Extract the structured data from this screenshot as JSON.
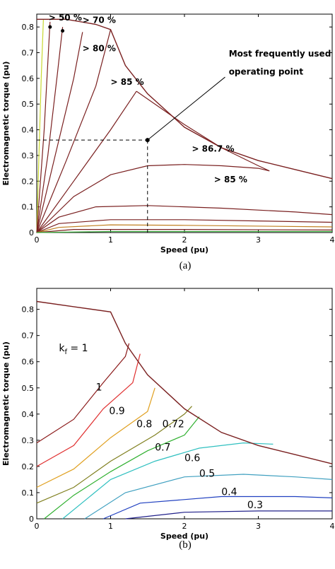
{
  "chart_data": [
    {
      "type": "line",
      "panel": "a",
      "caption": "(a)",
      "xlabel": "Speed (pu)",
      "ylabel": "Electromagnetic torque (pu)",
      "xlim": [
        0,
        4
      ],
      "ylim": [
        0,
        0.85
      ],
      "xticks": [
        "0",
        "1",
        "2",
        "3",
        "4"
      ],
      "yticks": [
        "0",
        "0.1",
        "0.2",
        "0.3",
        "0.4",
        "0.5",
        "0.6",
        "0.7",
        "0.8"
      ],
      "envelope": [
        [
          0,
          0.83
        ],
        [
          0.4,
          0.83
        ],
        [
          0.8,
          0.81
        ],
        [
          1.0,
          0.79
        ],
        [
          1.2,
          0.65
        ],
        [
          1.5,
          0.54
        ],
        [
          2.0,
          0.41
        ],
        [
          2.5,
          0.33
        ],
        [
          3.0,
          0.28
        ],
        [
          3.5,
          0.245
        ],
        [
          4.0,
          0.21
        ]
      ],
      "series": [
        {
          "color": "#c8d830",
          "points": [
            [
              0,
              0
            ],
            [
              0.03,
              0.3
            ],
            [
              0.06,
              0.6
            ],
            [
              0.09,
              0.83
            ]
          ]
        },
        {
          "color": "#7a2020",
          "points": [
            [
              0,
              0
            ],
            [
              0.1,
              0.4
            ],
            [
              0.18,
              0.82
            ]
          ]
        },
        {
          "color": "#7a2020",
          "points": [
            [
              0,
              0
            ],
            [
              0.15,
              0.3
            ],
            [
              0.28,
              0.62
            ],
            [
              0.35,
              0.8
            ]
          ]
        },
        {
          "color": "#7a2020",
          "points": [
            [
              0,
              0
            ],
            [
              0.25,
              0.3
            ],
            [
              0.5,
              0.6
            ],
            [
              0.62,
              0.78
            ]
          ]
        },
        {
          "color": "#7a2020",
          "points": [
            [
              0,
              0
            ],
            [
              0.4,
              0.28
            ],
            [
              0.8,
              0.57
            ],
            [
              1.0,
              0.79
            ]
          ]
        },
        {
          "color": "#7a2020",
          "points": [
            [
              0,
              0
            ],
            [
              0.5,
              0.2
            ],
            [
              1.0,
              0.4
            ],
            [
              1.35,
              0.55
            ]
          ]
        },
        {
          "color": "#7a2020",
          "points": [
            [
              0,
              0
            ],
            [
              0.5,
              0.14
            ],
            [
              1.0,
              0.225
            ],
            [
              1.5,
              0.26
            ],
            [
              2.0,
              0.265
            ],
            [
              2.5,
              0.26
            ],
            [
              3.0,
              0.25
            ],
            [
              3.15,
              0.24
            ]
          ]
        },
        {
          "color": "#7a2020",
          "points": [
            [
              1.35,
              0.55
            ],
            [
              1.6,
              0.5
            ],
            [
              2.0,
              0.42
            ],
            [
              2.5,
              0.33
            ],
            [
              3.0,
              0.26
            ],
            [
              3.15,
              0.24
            ]
          ]
        },
        {
          "color": "#7a2020",
          "points": [
            [
              0,
              0
            ],
            [
              0.3,
              0.06
            ],
            [
              0.8,
              0.1
            ],
            [
              1.5,
              0.105
            ],
            [
              2.5,
              0.095
            ],
            [
              3.5,
              0.08
            ],
            [
              4.0,
              0.07
            ]
          ]
        },
        {
          "color": "#7a2020",
          "points": [
            [
              0,
              0
            ],
            [
              0.3,
              0.035
            ],
            [
              1.0,
              0.05
            ],
            [
              2.0,
              0.05
            ],
            [
              3.0,
              0.045
            ],
            [
              4.0,
              0.04
            ]
          ]
        },
        {
          "color": "#c08020",
          "points": [
            [
              0,
              0
            ],
            [
              0.3,
              0.02
            ],
            [
              1.0,
              0.03
            ],
            [
              2.0,
              0.028
            ],
            [
              4.0,
              0.022
            ]
          ]
        },
        {
          "color": "#7a2020",
          "points": [
            [
              0,
              0
            ],
            [
              0.5,
              0.012
            ],
            [
              2.0,
              0.012
            ],
            [
              4.0,
              0.01
            ]
          ]
        },
        {
          "color": "#40b040",
          "points": [
            [
              0,
              0
            ],
            [
              1.0,
              0.004
            ],
            [
              4.0,
              0.004
            ]
          ]
        }
      ],
      "operating_point": {
        "x": 1.5,
        "y": 0.36
      },
      "annotations": [
        {
          "text": "> 50 %",
          "x": 0.16,
          "y": 0.825
        },
        {
          "text": "> 70 %",
          "x": 0.62,
          "y": 0.815
        },
        {
          "text": "> 80 %",
          "x": 0.62,
          "y": 0.705
        },
        {
          "text": "> 85 %",
          "x": 1.0,
          "y": 0.575
        },
        {
          "text": "Most frequently used",
          "x": 2.6,
          "y": 0.685
        },
        {
          "text": "operating point",
          "x": 2.6,
          "y": 0.615
        },
        {
          "text": "> 86.7 %",
          "x": 2.1,
          "y": 0.315
        },
        {
          "text": "> 85 %",
          "x": 2.4,
          "y": 0.195
        }
      ]
    },
    {
      "type": "line",
      "panel": "b",
      "caption": "(b)",
      "xlabel": "Speed (pu)",
      "ylabel": "Electromagnetic torque (pu)",
      "xlim": [
        0,
        4
      ],
      "ylim": [
        0,
        0.88
      ],
      "xticks": [
        "0",
        "1",
        "2",
        "3",
        "4"
      ],
      "yticks": [
        "0",
        "0.1",
        "0.2",
        "0.3",
        "0.4",
        "0.5",
        "0.6",
        "0.7",
        "0.8"
      ],
      "label_kf": "k",
      "label_kf_sub": "f",
      "label_kf_eq": " = 1",
      "envelope": [
        [
          0,
          0.83
        ],
        [
          0.5,
          0.81
        ],
        [
          1.0,
          0.79
        ],
        [
          1.2,
          0.67
        ],
        [
          1.5,
          0.55
        ],
        [
          2.0,
          0.42
        ],
        [
          2.5,
          0.33
        ],
        [
          3.0,
          0.28
        ],
        [
          3.5,
          0.245
        ],
        [
          4.0,
          0.21
        ]
      ],
      "series": [
        {
          "name": "1",
          "color": "#8b1a1a",
          "points": [
            [
              0,
              0.29
            ],
            [
              0.5,
              0.38
            ],
            [
              0.9,
              0.52
            ],
            [
              1.2,
              0.62
            ],
            [
              1.25,
              0.67
            ]
          ]
        },
        {
          "name": "0.9",
          "color": "#e03030",
          "points": [
            [
              0,
              0.2
            ],
            [
              0.5,
              0.28
            ],
            [
              0.9,
              0.42
            ],
            [
              1.3,
              0.52
            ],
            [
              1.4,
              0.63
            ]
          ]
        },
        {
          "name": "0.8",
          "color": "#e0a020",
          "points": [
            [
              0,
              0.12
            ],
            [
              0.5,
              0.19
            ],
            [
              1.0,
              0.31
            ],
            [
              1.5,
              0.41
            ],
            [
              1.6,
              0.5
            ]
          ]
        },
        {
          "name": "0.72",
          "color": "#808020",
          "points": [
            [
              0,
              0.06
            ],
            [
              0.5,
              0.12
            ],
            [
              1.0,
              0.22
            ],
            [
              1.6,
              0.32
            ],
            [
              2.0,
              0.4
            ],
            [
              2.1,
              0.43
            ]
          ]
        },
        {
          "name": "0.7",
          "color": "#30b030",
          "points": [
            [
              0.1,
              0
            ],
            [
              0.5,
              0.09
            ],
            [
              1.0,
              0.18
            ],
            [
              1.5,
              0.26
            ],
            [
              2.0,
              0.32
            ],
            [
              2.2,
              0.39
            ]
          ]
        },
        {
          "name": "0.6",
          "color": "#30c0c0",
          "points": [
            [
              0.35,
              0
            ],
            [
              1.0,
              0.15
            ],
            [
              1.6,
              0.22
            ],
            [
              2.2,
              0.27
            ],
            [
              2.8,
              0.29
            ],
            [
              3.2,
              0.285
            ]
          ]
        },
        {
          "name": "0.5",
          "color": "#40a0c0",
          "points": [
            [
              0.65,
              0
            ],
            [
              1.2,
              0.1
            ],
            [
              2.0,
              0.16
            ],
            [
              2.8,
              0.17
            ],
            [
              3.5,
              0.16
            ],
            [
              4.0,
              0.15
            ]
          ]
        },
        {
          "name": "0.4",
          "color": "#2040c0",
          "points": [
            [
              0.9,
              0
            ],
            [
              1.4,
              0.06
            ],
            [
              2.5,
              0.085
            ],
            [
              3.5,
              0.085
            ],
            [
              4.0,
              0.08
            ]
          ]
        },
        {
          "name": "0.3",
          "color": "#20208a",
          "points": [
            [
              1.2,
              0
            ],
            [
              2.0,
              0.025
            ],
            [
              3.0,
              0.03
            ],
            [
              4.0,
              0.03
            ]
          ]
        }
      ]
    }
  ]
}
